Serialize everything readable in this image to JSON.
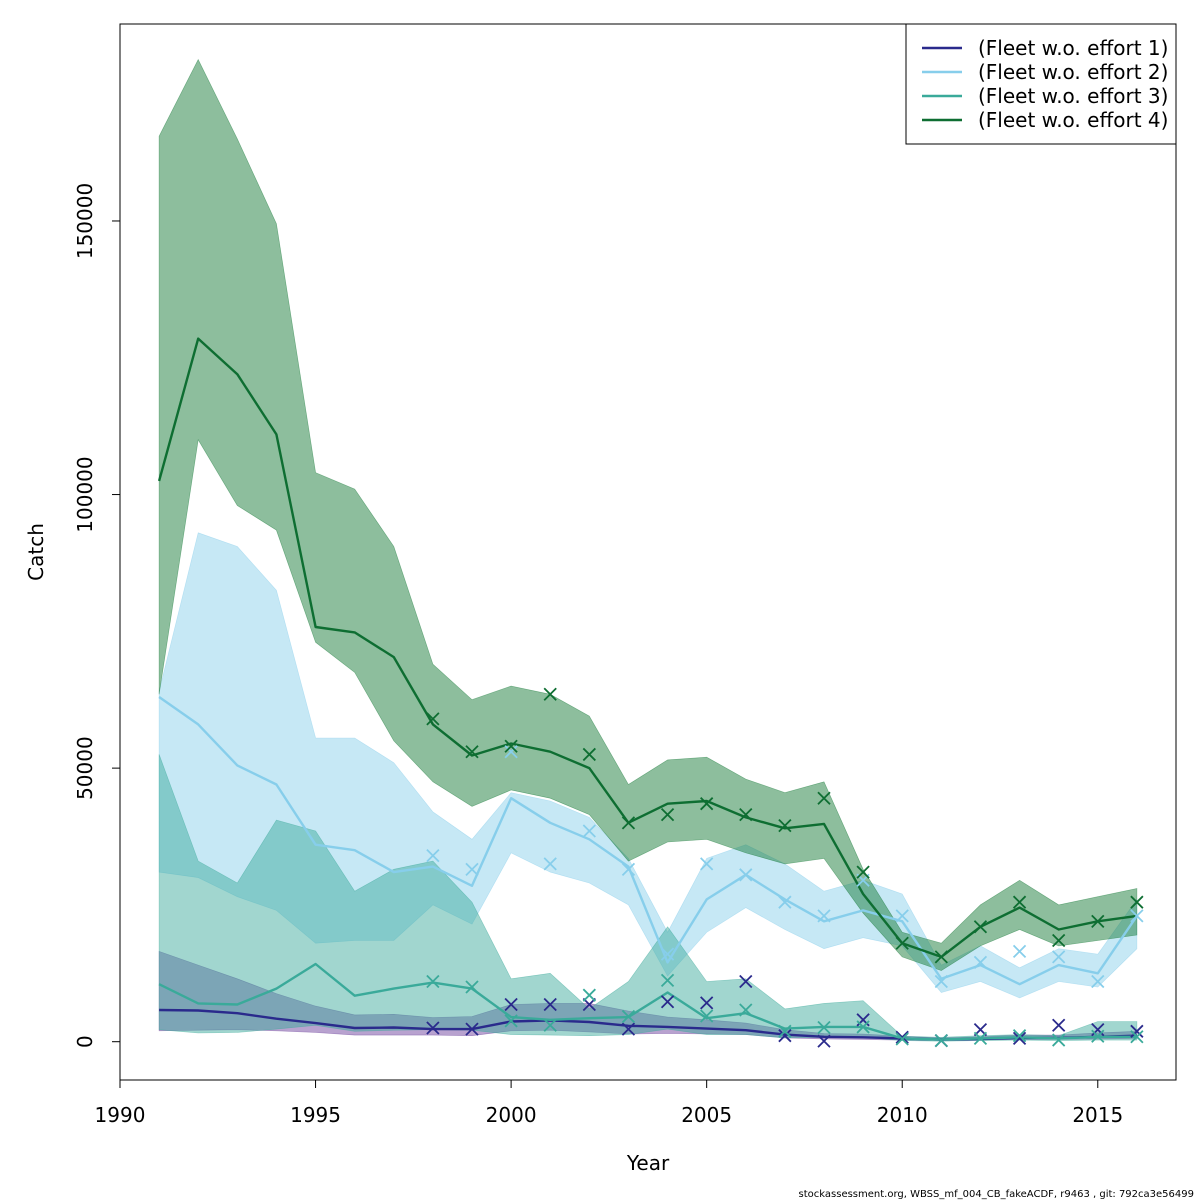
{
  "footer": "stockassessment.org, WBSS_mf_004_CB_fakeACDF, r9463 , git: 792ca3e56499",
  "chart_data": {
    "type": "line",
    "xlabel": "Year",
    "ylabel": "Catch",
    "xlim": [
      1990,
      2017
    ],
    "ylim": [
      -7000,
      186000
    ],
    "xticks": [
      1990,
      1995,
      2000,
      2005,
      2010,
      2015
    ],
    "yticks": [
      0,
      50000,
      100000,
      150000
    ],
    "x_tick_labels": [
      "1990",
      "1995",
      "2000",
      "2005",
      "2010",
      "2015"
    ],
    "y_tick_labels": [
      "0",
      "50000",
      "100000",
      "150000"
    ],
    "legend_position": "top-right",
    "grid": false,
    "years": [
      1991,
      1992,
      1993,
      1994,
      1995,
      1996,
      1997,
      1998,
      1999,
      2000,
      2001,
      2002,
      2003,
      2004,
      2005,
      2006,
      2007,
      2008,
      2009,
      2010,
      2011,
      2012,
      2013,
      2014,
      2015,
      2016
    ],
    "series": [
      {
        "name": "(Fleet w.o. effort 1)",
        "color": "#2a2a8c",
        "band_color": "#6a3d9a",
        "fit": [
          5800,
          5700,
          5200,
          4200,
          3400,
          2500,
          2600,
          2300,
          2300,
          3700,
          3900,
          3600,
          2900,
          2700,
          2400,
          2100,
          1300,
          900,
          800,
          600,
          400,
          500,
          700,
          700,
          900,
          1100
        ],
        "upper": [
          16500,
          14000,
          11500,
          8800,
          6500,
          4900,
          5000,
          4400,
          4600,
          6800,
          7000,
          7000,
          5600,
          4500,
          4000,
          3400,
          2200,
          1500,
          1400,
          1000,
          700,
          900,
          1200,
          1200,
          1600,
          1900
        ],
        "lower": [
          2000,
          2100,
          2200,
          2000,
          1700,
          1200,
          1200,
          1200,
          1100,
          2000,
          2100,
          1800,
          1400,
          1500,
          1400,
          1300,
          700,
          500,
          400,
          300,
          200,
          300,
          400,
          400,
          500,
          600
        ],
        "obs": [
          null,
          null,
          null,
          null,
          null,
          null,
          null,
          2500,
          2300,
          6800,
          6800,
          6800,
          2300,
          7300,
          7100,
          11000,
          1100,
          100,
          4000,
          800,
          200,
          2200,
          600,
          3000,
          2200,
          1900
        ]
      },
      {
        "name": "(Fleet w.o. effort 2)",
        "color": "#87ceeb",
        "band_color": "#87ceeb",
        "fit": [
          63000,
          58000,
          50500,
          47000,
          36000,
          35000,
          31000,
          32000,
          28500,
          44500,
          40000,
          37000,
          32000,
          14500,
          26000,
          30500,
          26000,
          22000,
          24000,
          22000,
          11500,
          14000,
          10500,
          14000,
          12500,
          23000
        ],
        "upper": [
          64000,
          93000,
          90500,
          82500,
          55500,
          55500,
          51000,
          42000,
          37000,
          45500,
          44000,
          41000,
          33500,
          20000,
          33500,
          36000,
          32500,
          27500,
          29500,
          27000,
          14000,
          17500,
          13500,
          17000,
          16000,
          26000
        ],
        "lower": [
          31000,
          30000,
          26500,
          24000,
          18000,
          18500,
          18500,
          25000,
          21500,
          34500,
          31000,
          29000,
          25000,
          12000,
          20000,
          24500,
          20500,
          17000,
          19000,
          17500,
          9000,
          11000,
          8000,
          11000,
          10000,
          17000
        ],
        "obs": [
          null,
          null,
          null,
          null,
          null,
          null,
          null,
          34000,
          31500,
          53000,
          32500,
          38500,
          31500,
          16000,
          32500,
          30500,
          25500,
          23000,
          29500,
          23000,
          11000,
          14500,
          16500,
          15500,
          11000,
          23000
        ]
      },
      {
        "name": "(Fleet w.o. effort 3)",
        "color": "#3aaa9a",
        "band_color": "#3aaa9a",
        "fit": [
          10500,
          7000,
          6800,
          9700,
          14200,
          8400,
          9700,
          10800,
          9700,
          4500,
          4000,
          4300,
          4500,
          9000,
          4300,
          5200,
          2400,
          2700,
          2700,
          600,
          400,
          600,
          800,
          600,
          900,
          900
        ],
        "upper": [
          52500,
          33000,
          29000,
          40500,
          38500,
          27500,
          31500,
          33000,
          25500,
          11500,
          12500,
          6000,
          11000,
          21000,
          11000,
          11500,
          6000,
          7000,
          7500,
          1000,
          800,
          1100,
          1300,
          1100,
          3700,
          3700
        ],
        "lower": [
          2200,
          1600,
          1700,
          2300,
          3000,
          1900,
          2100,
          2200,
          2100,
          1300,
          1200,
          1100,
          1300,
          2300,
          1300,
          1300,
          700,
          800,
          800,
          200,
          100,
          200,
          300,
          200,
          300,
          300
        ],
        "obs": [
          null,
          null,
          null,
          null,
          null,
          null,
          null,
          11000,
          10000,
          3800,
          3000,
          8500,
          4600,
          11200,
          4700,
          5800,
          1900,
          2600,
          2700,
          500,
          200,
          600,
          1100,
          300,
          1000,
          900
        ]
      },
      {
        "name": "(Fleet w.o. effort 4)",
        "color": "#0e6e32",
        "band_color": "#117733",
        "fit": [
          102500,
          128500,
          122000,
          111000,
          75800,
          74800,
          70300,
          58000,
          52300,
          54500,
          53000,
          50000,
          40000,
          43500,
          44000,
          41000,
          39000,
          39800,
          27000,
          18000,
          15500,
          21000,
          24500,
          20500,
          22000,
          23000
        ],
        "upper": [
          165500,
          179500,
          165000,
          149500,
          104000,
          101000,
          90500,
          69000,
          62500,
          65000,
          63500,
          59500,
          47000,
          51500,
          52000,
          48000,
          45500,
          47500,
          31500,
          20000,
          18000,
          25000,
          29500,
          25000,
          26500,
          28000
        ],
        "lower": [
          63500,
          110000,
          98000,
          93500,
          73000,
          67500,
          55000,
          47500,
          43000,
          46000,
          44500,
          41500,
          33000,
          36500,
          37000,
          34500,
          32500,
          33500,
          23500,
          15500,
          13000,
          17500,
          20500,
          17500,
          18500,
          19500
        ],
        "obs": [
          null,
          null,
          null,
          null,
          null,
          null,
          null,
          59000,
          53000,
          54000,
          63500,
          52500,
          40000,
          41500,
          43500,
          41500,
          39500,
          44500,
          31000,
          18000,
          15500,
          21000,
          25500,
          18500,
          22000,
          25500
        ]
      }
    ]
  }
}
